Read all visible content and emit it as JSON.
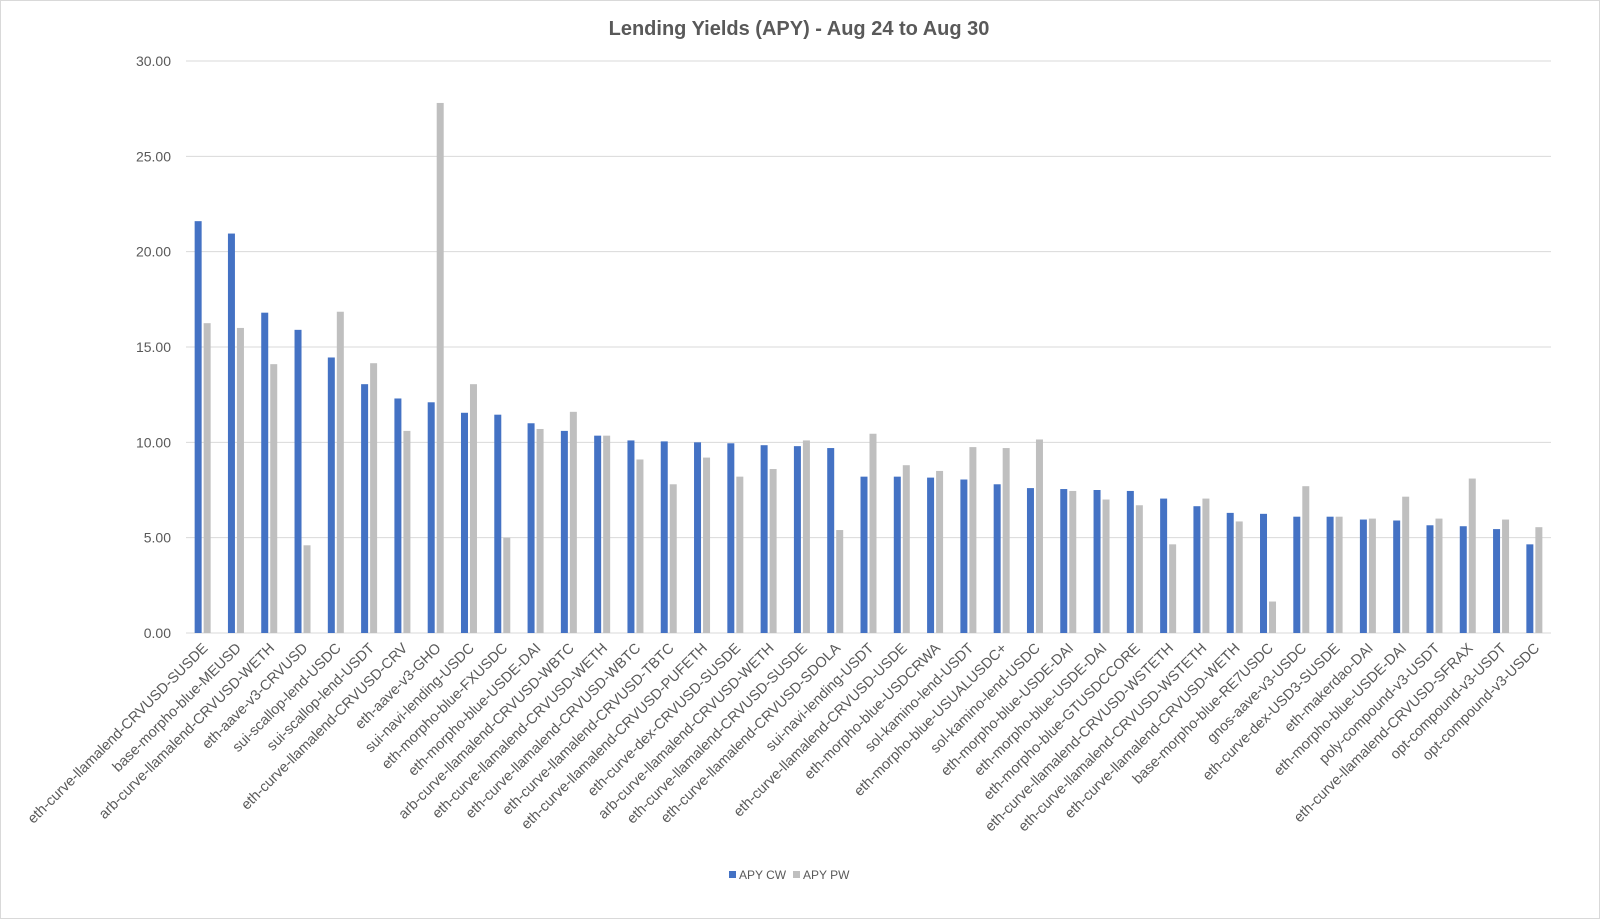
{
  "chart_data": {
    "type": "bar",
    "title": "Lending Yields (APY) - Aug 24 to Aug 30",
    "xlabel": "",
    "ylabel": "",
    "ylim": [
      0,
      30
    ],
    "yticks": [
      "0.00",
      "5.00",
      "10.00",
      "15.00",
      "20.00",
      "25.00",
      "30.00"
    ],
    "grid": true,
    "legend_position": "bottom",
    "categories": [
      "eth-curve-llamalend-CRVUSD-SUSDE",
      "base-morpho-blue-MEUSD",
      "arb-curve-llamalend-CRVUSD-WETH",
      "eth-aave-v3-CRVUSD",
      "sui-scallop-lend-USDC",
      "sui-scallop-lend-USDT",
      "eth-curve-llamalend-CRVUSD-CRV",
      "eth-aave-v3-GHO",
      "sui-navi-lending-USDC",
      "eth-morpho-blue-FXUSDC",
      "eth-morpho-blue-USDE-DAI",
      "arb-curve-llamalend-CRVUSD-WBTC",
      "eth-curve-llamalend-CRVUSD-WETH",
      "eth-curve-llamalend-CRVUSD-WBTC",
      "eth-curve-llamalend-CRVUSD-TBTC",
      "eth-curve-llamalend-CRVUSD-PUFETH",
      "eth-curve-dex-CRVUSD-SUSDE",
      "arb-curve-llamalend-CRVUSD-WETH",
      "eth-curve-llamalend-CRVUSD-SUSDE",
      "eth-curve-llamalend-CRVUSD-SDOLA",
      "sui-navi-lending-USDT",
      "eth-curve-llamalend-CRVUSD-USDE",
      "eth-morpho-blue-USDCRWA",
      "sol-kamino-lend-USDT",
      "eth-morpho-blue-USUALUSDC+",
      "sol-kamino-lend-USDC",
      "eth-morpho-blue-USDE-DAI",
      "eth-morpho-blue-USDE-DAI",
      "eth-morpho-blue-GTUSDCCORE",
      "eth-curve-llamalend-CRVUSD-WSTETH",
      "eth-curve-llamalend-CRVUSD-WSTETH",
      "eth-curve-llamalend-CRVUSD-WETH",
      "base-morpho-blue-RE7USDC",
      "gnos-aave-v3-USDC",
      "eth-curve-dex-USD3-SUSDE",
      "eth-makerdao-DAI",
      "eth-morpho-blue-USDE-DAI",
      "poly-compound-v3-USDT",
      "eth-curve-llamalend-CRVUSD-SFRAX",
      "opt-compound-v3-USDT",
      "opt-compound-v3-USDC"
    ],
    "series": [
      {
        "name": "APY CW",
        "color": "#4472c4",
        "values": [
          21.6,
          20.95,
          16.8,
          15.9,
          14.45,
          13.05,
          12.3,
          12.1,
          11.55,
          11.45,
          11.0,
          10.6,
          10.35,
          10.1,
          10.05,
          10.0,
          9.95,
          9.85,
          9.8,
          9.7,
          8.2,
          8.2,
          8.15,
          8.05,
          7.8,
          7.6,
          7.55,
          7.5,
          7.45,
          7.05,
          6.65,
          6.3,
          6.25,
          6.1,
          6.1,
          5.95,
          5.9,
          5.65,
          5.6,
          5.45,
          4.65
        ]
      },
      {
        "name": "APY PW",
        "color": "#bfbfbf",
        "values": [
          16.25,
          16.0,
          14.1,
          4.6,
          16.85,
          14.15,
          10.6,
          27.8,
          13.05,
          5.0,
          10.7,
          11.6,
          10.35,
          9.1,
          7.8,
          9.2,
          8.2,
          8.6,
          10.1,
          5.4,
          10.45,
          8.8,
          8.5,
          9.75,
          9.7,
          10.15,
          7.45,
          7.0,
          6.7,
          4.65,
          7.05,
          5.85,
          1.65,
          7.7,
          6.1,
          6.0,
          7.15,
          6.0,
          8.1,
          5.95,
          5.55
        ]
      }
    ]
  }
}
